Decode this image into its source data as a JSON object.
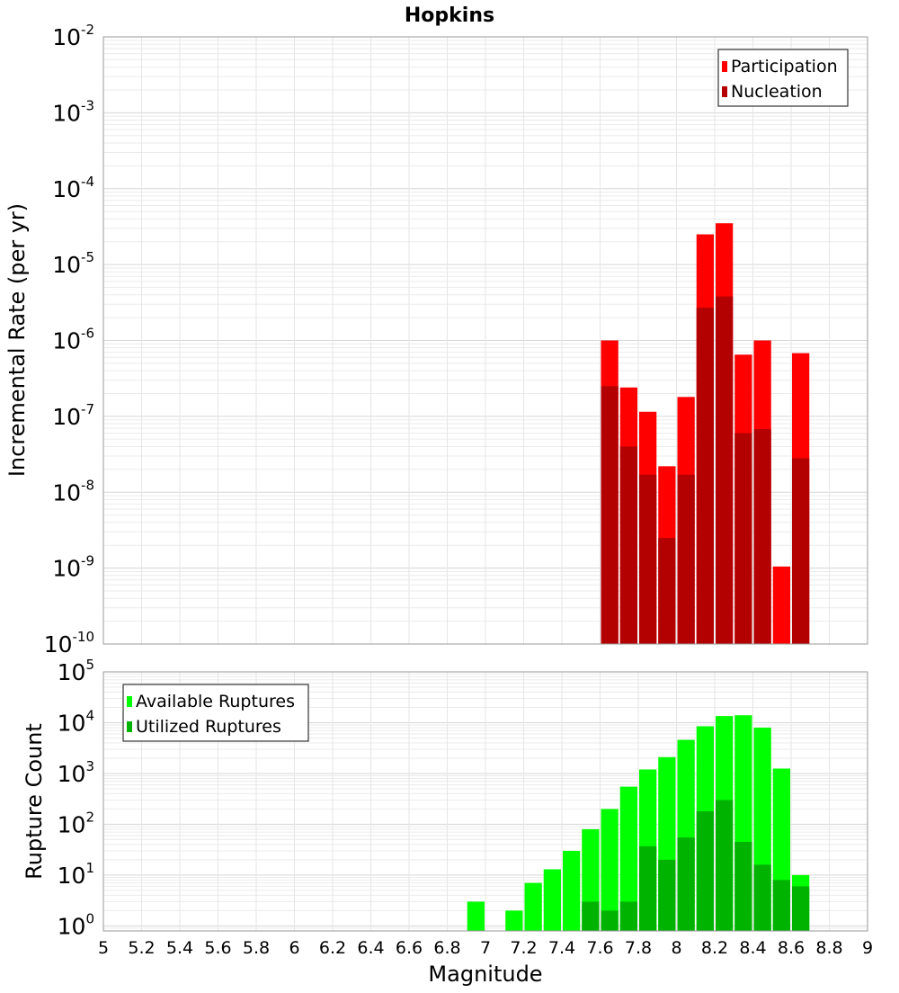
{
  "chart_data": [
    {
      "id": "rates",
      "type": "bar",
      "title": "Hopkins",
      "ylabel": "Incremental Rate (per yr)",
      "yscale": "log",
      "ylim_exponent": [
        -10,
        -2
      ],
      "y_tick_exponents": [
        -10,
        -9,
        -8,
        -7,
        -6,
        -5,
        -4,
        -3,
        -2
      ],
      "legend": {
        "placement": "top-right",
        "entries": [
          "Participation",
          "Nucleation"
        ]
      },
      "x": [
        7.65,
        7.75,
        7.85,
        7.95,
        8.05,
        8.15,
        8.25,
        8.35,
        8.45,
        8.55,
        8.65
      ],
      "series": [
        {
          "name": "Participation",
          "color": "#ff0000",
          "values": [
            1e-06,
            2.4e-07,
            1.15e-07,
            2.2e-08,
            1.8e-07,
            2.5e-05,
            3.5e-05,
            6.5e-07,
            1e-06,
            1.05e-09,
            6.8e-07
          ]
        },
        {
          "name": "Nucleation",
          "color": "#b30000",
          "values": [
            2.5e-07,
            4e-08,
            1.7e-08,
            2.5e-09,
            1.7e-08,
            2.7e-06,
            3.8e-06,
            6e-08,
            6.8e-08,
            null,
            2.8e-08
          ]
        }
      ]
    },
    {
      "id": "counts",
      "type": "bar",
      "xlabel": "Magnitude",
      "ylabel": "Rupture Count",
      "yscale": "log",
      "ylim_exponent": [
        -0.1,
        5
      ],
      "y_tick_exponents": [
        0,
        1,
        2,
        3,
        4,
        5
      ],
      "xlim": [
        5,
        9
      ],
      "x_ticks": [
        "5",
        "5.2",
        "5.4",
        "5.6",
        "5.8",
        "6",
        "6.2",
        "6.4",
        "6.6",
        "6.8",
        "7",
        "7.2",
        "7.4",
        "7.6",
        "7.8",
        "8",
        "8.2",
        "8.4",
        "8.6",
        "8.8",
        "9"
      ],
      "legend": {
        "placement": "top-left",
        "entries": [
          "Available Ruptures",
          "Utilized Ruptures"
        ]
      },
      "x": [
        6.95,
        7.05,
        7.15,
        7.25,
        7.35,
        7.45,
        7.55,
        7.65,
        7.75,
        7.85,
        7.95,
        8.05,
        8.15,
        8.25,
        8.35,
        8.45,
        8.55,
        8.65
      ],
      "series": [
        {
          "name": "Available Ruptures",
          "color": "#00ff00",
          "values": [
            3,
            null,
            2,
            7,
            13,
            30,
            80,
            200,
            550,
            1200,
            2100,
            4600,
            8500,
            13500,
            14000,
            8000,
            1250,
            10
          ]
        },
        {
          "name": "Utilized Ruptures",
          "color": "#00b300",
          "values": [
            null,
            null,
            null,
            null,
            null,
            null,
            3,
            2,
            3,
            37,
            20,
            55,
            180,
            300,
            45,
            16,
            8,
            6
          ]
        }
      ]
    }
  ]
}
